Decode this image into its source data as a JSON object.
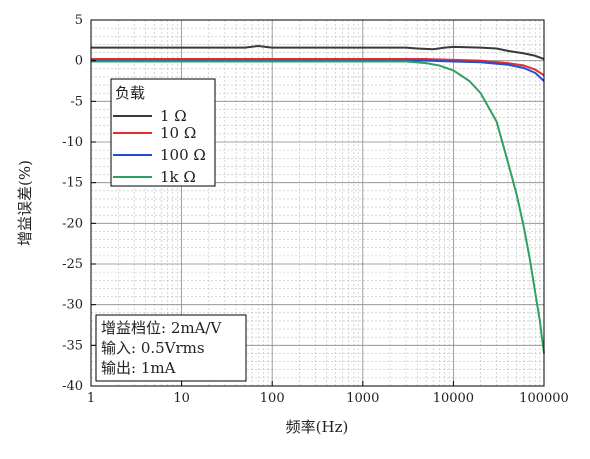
{
  "chart_data": {
    "type": "line",
    "xlabel": "频率(Hz)",
    "ylabel": "增益误差(%)",
    "xscale": "log",
    "xlim": [
      1,
      100000
    ],
    "ylim": [
      -40,
      5
    ],
    "xticks": [
      "1",
      "10",
      "100",
      "1000",
      "10000",
      "100000"
    ],
    "yticks": [
      "5",
      "0",
      "-5",
      "-10",
      "-15",
      "-20",
      "-25",
      "-30",
      "-35",
      "-40"
    ],
    "grid": true,
    "legend": {
      "title": "负载",
      "placement": "top-left",
      "entries": [
        "1 Ω",
        "10 Ω",
        "100 Ω",
        "1k Ω"
      ]
    },
    "annotation": [
      "增益档位: 2mA/V",
      "输入: 0.5Vrms",
      "输出: 1mA"
    ],
    "series": [
      {
        "name": "1 Ω",
        "color": "#3a3a3a",
        "points": [
          [
            1,
            1.6
          ],
          [
            50,
            1.6
          ],
          [
            70,
            1.8
          ],
          [
            100,
            1.6
          ],
          [
            1000,
            1.6
          ],
          [
            3000,
            1.6
          ],
          [
            4000,
            1.5
          ],
          [
            6000,
            1.4
          ],
          [
            8000,
            1.6
          ],
          [
            10000,
            1.7
          ],
          [
            20000,
            1.6
          ],
          [
            30000,
            1.5
          ],
          [
            40000,
            1.2
          ],
          [
            60000,
            0.9
          ],
          [
            80000,
            0.6
          ],
          [
            100000,
            0.2
          ]
        ]
      },
      {
        "name": "10 Ω",
        "color": "#e03030",
        "points": [
          [
            1,
            0.2
          ],
          [
            1000,
            0.2
          ],
          [
            5000,
            0.2
          ],
          [
            10000,
            0.1
          ],
          [
            20000,
            0.0
          ],
          [
            40000,
            -0.3
          ],
          [
            60000,
            -0.6
          ],
          [
            80000,
            -1.1
          ],
          [
            100000,
            -1.8
          ]
        ]
      },
      {
        "name": "100 Ω",
        "color": "#2050d0",
        "points": [
          [
            1,
            0.0
          ],
          [
            1000,
            0.0
          ],
          [
            5000,
            0.0
          ],
          [
            10000,
            -0.1
          ],
          [
            20000,
            -0.2
          ],
          [
            40000,
            -0.5
          ],
          [
            60000,
            -0.9
          ],
          [
            80000,
            -1.5
          ],
          [
            100000,
            -2.5
          ]
        ]
      },
      {
        "name": "1k Ω",
        "color": "#30a060",
        "points": [
          [
            1,
            -0.1
          ],
          [
            1000,
            -0.1
          ],
          [
            3000,
            -0.1
          ],
          [
            5000,
            -0.3
          ],
          [
            7000,
            -0.6
          ],
          [
            10000,
            -1.2
          ],
          [
            15000,
            -2.5
          ],
          [
            20000,
            -4.0
          ],
          [
            30000,
            -7.5
          ],
          [
            40000,
            -12.5
          ],
          [
            50000,
            -16.5
          ],
          [
            60000,
            -20.5
          ],
          [
            70000,
            -24.5
          ],
          [
            80000,
            -28.5
          ],
          [
            90000,
            -32.0
          ],
          [
            100000,
            -36.0
          ]
        ]
      }
    ]
  }
}
